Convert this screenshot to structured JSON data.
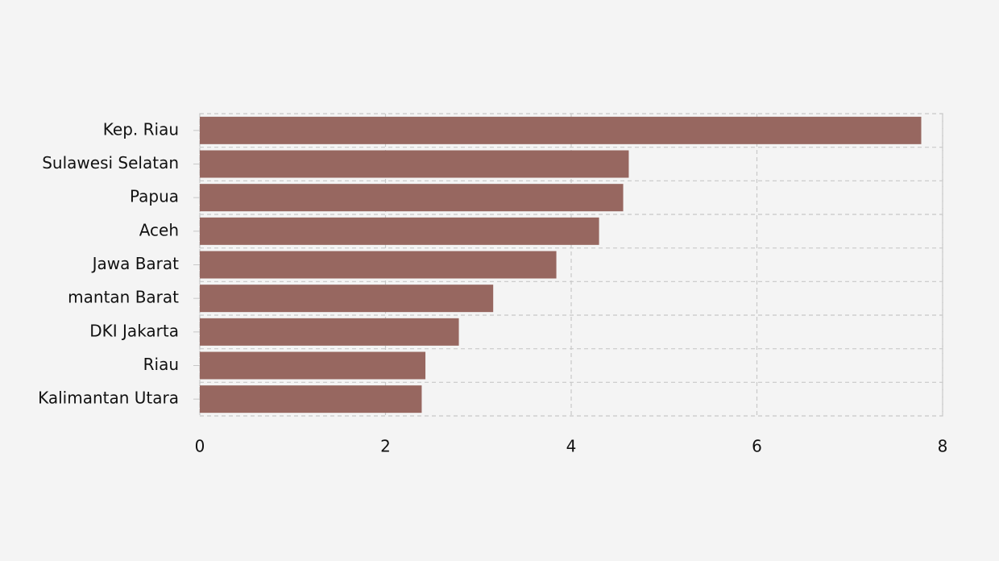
{
  "chart_data": {
    "type": "barh",
    "categories": [
      "Kep. Riau",
      "Sulawesi Selatan",
      "Papua",
      "Aceh",
      "Jawa Barat",
      "mantan Barat",
      "DKI Jakarta",
      "Riau",
      "Kalimantan Utara"
    ],
    "values": [
      7.77,
      4.62,
      4.56,
      4.3,
      3.84,
      3.16,
      2.79,
      2.43,
      2.39
    ],
    "color": "#976760",
    "xlim": [
      0,
      8
    ],
    "xticks": [
      0,
      2,
      4,
      6,
      8
    ],
    "grid": true
  }
}
